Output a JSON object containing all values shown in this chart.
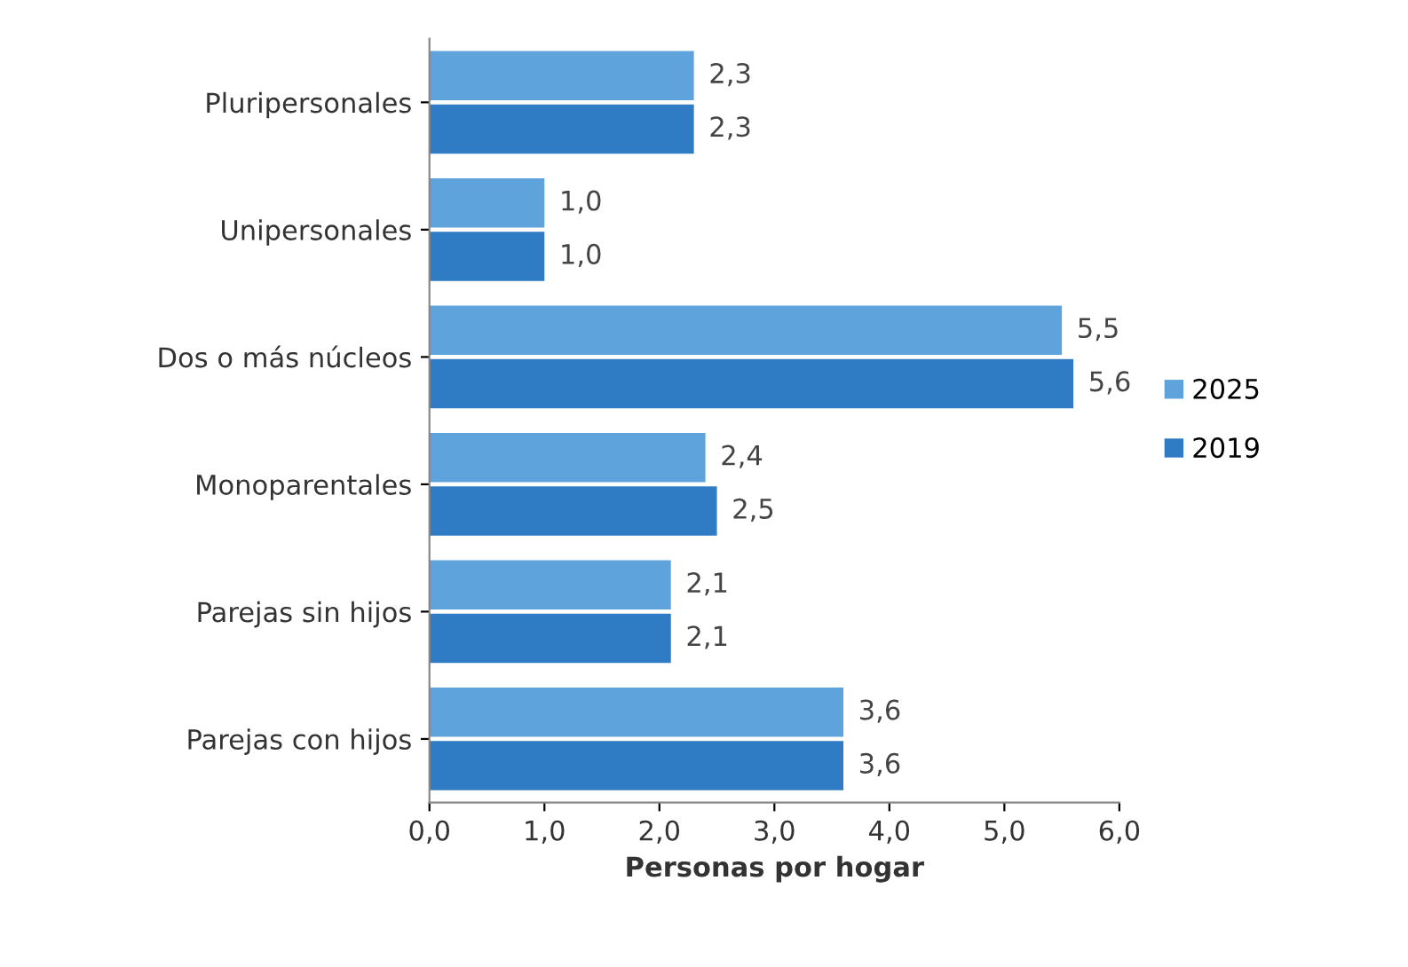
{
  "chart_data": {
    "type": "bar",
    "orientation": "horizontal",
    "xlabel": "Personas por hogar",
    "categories": [
      "Pluripersonales",
      "Unipersonales",
      "Dos o más núcleos",
      "Monoparentales",
      "Parejas sin hijos",
      "Parejas con hijos"
    ],
    "series": [
      {
        "name": "2025",
        "color": "#5ea3dc",
        "values": [
          2.3,
          1.0,
          5.5,
          2.4,
          2.1,
          3.6
        ],
        "value_labels": [
          "2,3",
          "1,0",
          "5,5",
          "2,4",
          "2,1",
          "3,6"
        ]
      },
      {
        "name": "2019",
        "color": "#2f7cc4",
        "values": [
          2.3,
          1.0,
          5.6,
          2.5,
          2.1,
          3.6
        ],
        "value_labels": [
          "2,3",
          "1,0",
          "5,6",
          "2,5",
          "2,1",
          "3,6"
        ]
      }
    ],
    "xlim": [
      0,
      6
    ],
    "xticks": [
      {
        "value": 0,
        "label": "0,0"
      },
      {
        "value": 1,
        "label": "1,0"
      },
      {
        "value": 2,
        "label": "2,0"
      },
      {
        "value": 3,
        "label": "3,0"
      },
      {
        "value": 4,
        "label": "4,0"
      },
      {
        "value": 5,
        "label": "5,0"
      },
      {
        "value": 6,
        "label": "6,0"
      }
    ],
    "grid": false,
    "legend": "right"
  }
}
